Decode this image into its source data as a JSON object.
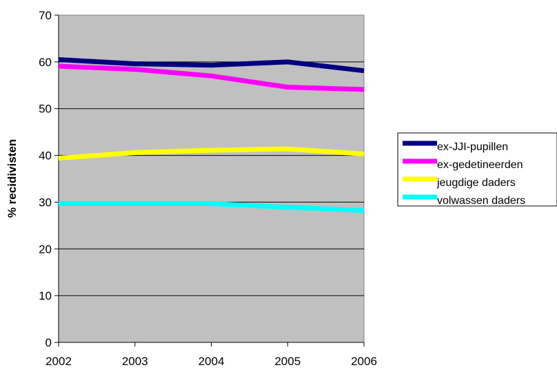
{
  "chart_data": {
    "type": "line",
    "title": "",
    "xlabel": "",
    "ylabel": "% recidivisten",
    "categories": [
      "2002",
      "2003",
      "2004",
      "2005",
      "2006"
    ],
    "ylim": [
      0,
      70
    ],
    "yticks": [
      0,
      10,
      20,
      30,
      40,
      50,
      60,
      70
    ],
    "grid": true,
    "legend_position": "right",
    "plot_background": "#c0c0c0",
    "series": [
      {
        "name": "ex-JJI-pupillen",
        "color": "#000080",
        "values": [
          60.5,
          59.6,
          59.3,
          60.0,
          58.1
        ]
      },
      {
        "name": "ex-gedetineerden",
        "color": "#ff00ff",
        "values": [
          59.1,
          58.4,
          57.0,
          54.6,
          54.1
        ]
      },
      {
        "name": "jeugdige daders",
        "color": "#ffff00",
        "values": [
          39.4,
          40.6,
          41.1,
          41.4,
          40.3
        ]
      },
      {
        "name": "volwassen daders",
        "color": "#00ffff",
        "values": [
          29.7,
          29.7,
          29.7,
          28.9,
          28.2
        ]
      }
    ]
  }
}
